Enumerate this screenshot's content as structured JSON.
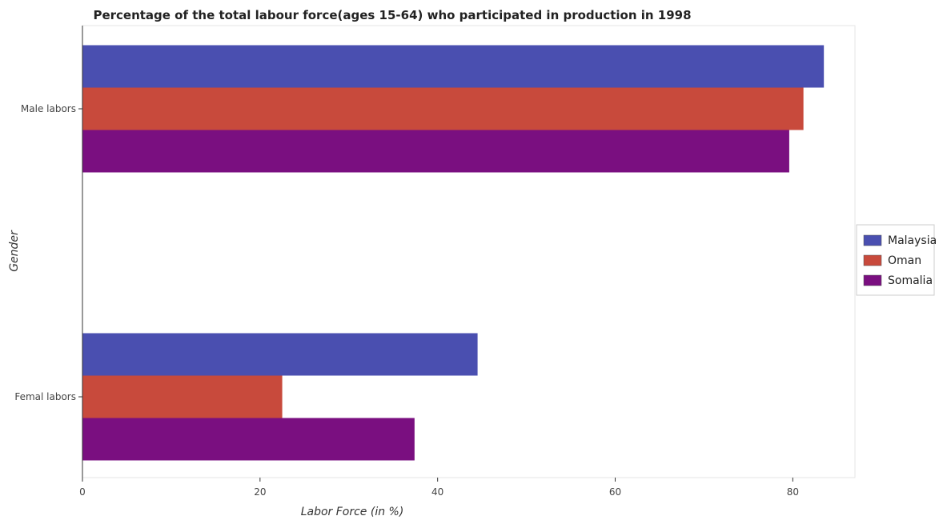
{
  "chart_data": {
    "type": "bar",
    "orientation": "horizontal",
    "title": "Percentage of the total labour force(ages 15-64) who participated in production in 1998",
    "xlabel": "Labor Force (in %)",
    "ylabel": "Gender",
    "categories": [
      "Femal labors",
      "Male labors"
    ],
    "series": [
      {
        "name": "Malaysia",
        "color": "#4a4fb0",
        "values": [
          44.5,
          83.5
        ]
      },
      {
        "name": "Oman",
        "color": "#c84a3c",
        "values": [
          22.5,
          81.2
        ]
      },
      {
        "name": "Somalia",
        "color": "#7a0f80",
        "values": [
          37.4,
          79.6
        ]
      }
    ],
    "xlim": [
      0,
      87
    ],
    "xticks": [
      0,
      20,
      40,
      60,
      80
    ],
    "xtick_labels": [
      "0",
      "20",
      "40",
      "60",
      "80"
    ],
    "grid": false,
    "legend_position": "right"
  }
}
